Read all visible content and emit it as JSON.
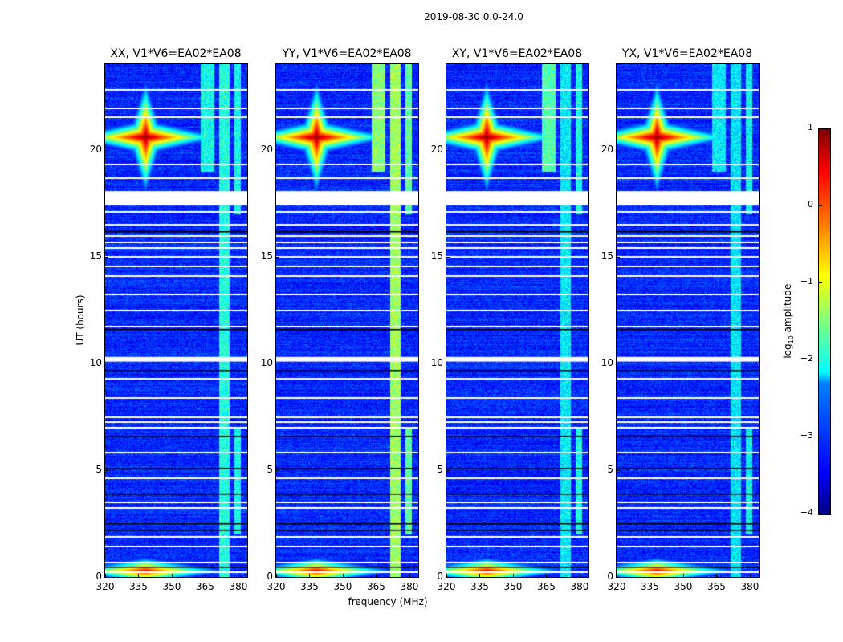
{
  "chart_data": {
    "type": "heatmap",
    "title": "2019-08-30 0.0-24.0",
    "xlabel": "frequency (MHz)",
    "ylabel": "UT (hours)",
    "xlim": [
      320,
      384
    ],
    "ylim": [
      0,
      24
    ],
    "xticks": [
      "320",
      "335",
      "350",
      "365",
      "380"
    ],
    "xtick_values": [
      320,
      335,
      350,
      365,
      380
    ],
    "yticks": [
      "0",
      "5",
      "10",
      "15",
      "20"
    ],
    "ytick_values": [
      0,
      5,
      10,
      15,
      20
    ],
    "panels": [
      {
        "title": "XX, V1*V6=EA02*EA08",
        "seed": 11,
        "band_level": -1.6
      },
      {
        "title": "YY, V1*V6=EA02*EA08",
        "seed": 23,
        "band_level": -1.3
      },
      {
        "title": "XY, V1*V6=EA02*EA08",
        "seed": 37,
        "band_level": -1.7
      },
      {
        "title": "YX, V1*V6=EA02*EA08",
        "seed": 51,
        "band_level": -1.8
      }
    ],
    "background_level": -3.2,
    "rfi_bands_mhz": [
      [
        363,
        369
      ],
      [
        371,
        376
      ],
      [
        378,
        381
      ]
    ],
    "bright_source": {
      "freq_mhz": 338,
      "hour": 20.6,
      "level": 1.0
    },
    "flagged_hours": [
      22.83,
      21.96,
      21.55,
      19.34,
      18.7,
      [
        17.39,
        18.06
      ],
      17.13,
      16.53,
      16.0,
      15.7,
      15.44,
      15.03,
      14.58,
      14.13,
      13.27,
      12.52,
      11.77,
      [
        10.08,
        10.3
      ],
      9.33,
      8.4,
      7.53,
      7.27,
      7.01,
      5.85,
      4.65,
      3.52,
      3.26,
      1.91,
      1.46,
      0.71,
      0.26
    ],
    "dark_hours": [
      16.2,
      11.6,
      9.7,
      6.6,
      5.1,
      3.9,
      2.5,
      2.2,
      0.5
    ],
    "colorbar": {
      "label_prefix": "log",
      "label_sub": "10",
      "label_suffix": " amplitude",
      "clim": [
        -4,
        1
      ],
      "ticks": [
        "1",
        "0",
        "−1",
        "−2",
        "−3",
        "−4"
      ],
      "tick_values": [
        1,
        0,
        -1,
        -2,
        -3,
        -4
      ]
    }
  }
}
